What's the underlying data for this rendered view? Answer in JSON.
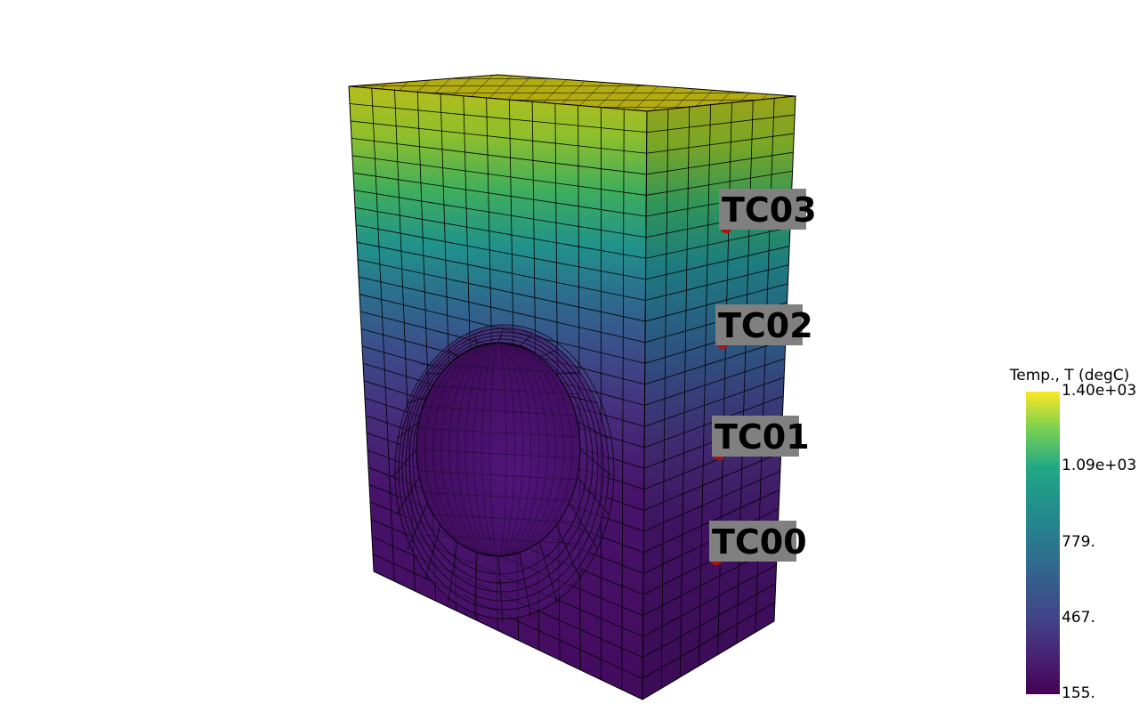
{
  "colorbar": {
    "title": "Temp., T (degC)",
    "ticks": [
      "1.40e+03",
      "1.09e+03",
      "779.",
      "467.",
      "155."
    ],
    "range": [
      155,
      1400
    ],
    "colormap": "viridis"
  },
  "probes": [
    {
      "label": "TC03",
      "color": "#b01010"
    },
    {
      "label": "TC02",
      "color": "#b01010"
    },
    {
      "label": "TC01",
      "color": "#b01010"
    },
    {
      "label": "TC00",
      "color": "#b01010"
    }
  ],
  "colors": {
    "background": "#ffffff",
    "mesh_lines": "#000000",
    "label_box": "#808080"
  }
}
